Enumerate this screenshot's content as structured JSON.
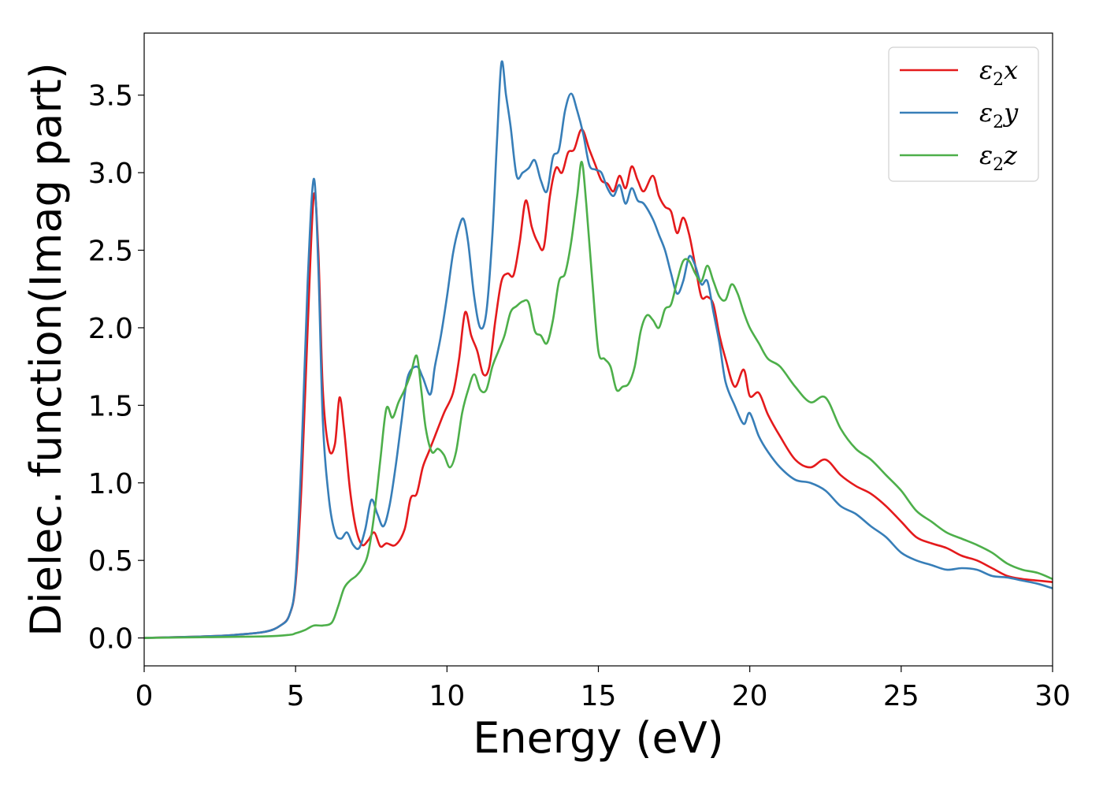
{
  "chart_data": {
    "type": "line",
    "title": "",
    "xlabel": "Energy (eV)",
    "ylabel": "Dielec. function(Imag part)",
    "xlim": [
      0,
      30
    ],
    "ylim": [
      -0.18,
      3.9
    ],
    "xticks": [
      0,
      5,
      10,
      15,
      20,
      25,
      30
    ],
    "yticks": [
      0.0,
      0.5,
      1.0,
      1.5,
      2.0,
      2.5,
      3.0,
      3.5
    ],
    "xtick_labels": [
      "0",
      "5",
      "10",
      "15",
      "20",
      "25",
      "30"
    ],
    "ytick_labels": [
      "0.0",
      "0.5",
      "1.0",
      "1.5",
      "2.0",
      "2.5",
      "3.0",
      "3.5"
    ],
    "grid": false,
    "legend_position": "top-right",
    "series": [
      {
        "name": "ε₂x",
        "legend_base": "ε",
        "legend_sub": "2",
        "legend_suffix": "x",
        "color": "#e41a1c",
        "x": [
          0,
          2,
          3,
          4,
          4.5,
          4.8,
          5.0,
          5.2,
          5.4,
          5.6,
          5.75,
          5.9,
          6.1,
          6.3,
          6.45,
          6.6,
          6.8,
          7.0,
          7.2,
          7.4,
          7.6,
          7.8,
          8.0,
          8.3,
          8.6,
          8.8,
          9.0,
          9.2,
          9.4,
          9.6,
          9.9,
          10.2,
          10.4,
          10.6,
          10.8,
          11.0,
          11.2,
          11.4,
          11.6,
          11.8,
          12.0,
          12.2,
          12.4,
          12.6,
          12.8,
          13.0,
          13.2,
          13.4,
          13.6,
          13.8,
          14.0,
          14.2,
          14.45,
          14.7,
          14.9,
          15.1,
          15.3,
          15.5,
          15.7,
          15.9,
          16.1,
          16.3,
          16.5,
          16.8,
          17.0,
          17.2,
          17.4,
          17.6,
          17.8,
          18.0,
          18.2,
          18.4,
          18.6,
          18.8,
          19.0,
          19.2,
          19.5,
          19.8,
          20.0,
          20.3,
          20.6,
          21.0,
          21.5,
          22.0,
          22.5,
          23.0,
          23.5,
          24.0,
          24.5,
          25.0,
          25.5,
          26.0,
          26.5,
          27.0,
          27.5,
          28.0,
          28.5,
          29.0,
          29.5,
          30.0
        ],
        "y": [
          0.0,
          0.01,
          0.02,
          0.04,
          0.08,
          0.15,
          0.35,
          1.0,
          2.0,
          2.85,
          2.5,
          1.6,
          1.22,
          1.25,
          1.55,
          1.35,
          0.95,
          0.7,
          0.6,
          0.63,
          0.68,
          0.59,
          0.61,
          0.6,
          0.7,
          0.9,
          0.93,
          1.1,
          1.2,
          1.3,
          1.45,
          1.58,
          1.8,
          2.1,
          1.95,
          1.85,
          1.7,
          1.75,
          2.05,
          2.3,
          2.35,
          2.34,
          2.55,
          2.82,
          2.65,
          2.55,
          2.52,
          2.85,
          3.03,
          3.0,
          3.13,
          3.15,
          3.28,
          3.15,
          3.05,
          2.95,
          2.93,
          2.88,
          2.98,
          2.9,
          3.04,
          2.95,
          2.88,
          2.98,
          2.85,
          2.78,
          2.75,
          2.61,
          2.71,
          2.6,
          2.4,
          2.2,
          2.2,
          2.15,
          1.95,
          1.8,
          1.62,
          1.73,
          1.56,
          1.58,
          1.44,
          1.3,
          1.15,
          1.1,
          1.15,
          1.05,
          0.98,
          0.93,
          0.85,
          0.75,
          0.65,
          0.61,
          0.58,
          0.53,
          0.5,
          0.45,
          0.4,
          0.38,
          0.37,
          0.36
        ]
      },
      {
        "name": "ε₂y",
        "legend_base": "ε",
        "legend_sub": "2",
        "legend_suffix": "y",
        "color": "#377eb8",
        "x": [
          0,
          2,
          3,
          4,
          4.5,
          4.8,
          5.0,
          5.2,
          5.4,
          5.6,
          5.75,
          5.9,
          6.1,
          6.3,
          6.5,
          6.7,
          6.9,
          7.1,
          7.3,
          7.5,
          7.7,
          7.9,
          8.1,
          8.3,
          8.5,
          8.7,
          9.0,
          9.2,
          9.45,
          9.6,
          9.8,
          10.0,
          10.2,
          10.4,
          10.55,
          10.7,
          10.9,
          11.1,
          11.3,
          11.5,
          11.65,
          11.8,
          11.95,
          12.1,
          12.3,
          12.5,
          12.7,
          12.9,
          13.1,
          13.3,
          13.5,
          13.7,
          13.9,
          14.1,
          14.3,
          14.5,
          14.7,
          14.9,
          15.1,
          15.3,
          15.5,
          15.7,
          15.9,
          16.1,
          16.3,
          16.5,
          16.8,
          17.0,
          17.2,
          17.4,
          17.6,
          17.8,
          18.0,
          18.2,
          18.4,
          18.6,
          18.8,
          19.0,
          19.2,
          19.5,
          19.8,
          20.0,
          20.3,
          20.6,
          21.0,
          21.5,
          22.0,
          22.5,
          23.0,
          23.5,
          24.0,
          24.5,
          25.0,
          25.5,
          26.0,
          26.5,
          27.0,
          27.5,
          28.0,
          28.5,
          29.0,
          29.5,
          30.0
        ],
        "y": [
          0.0,
          0.01,
          0.02,
          0.04,
          0.08,
          0.15,
          0.38,
          1.2,
          2.3,
          2.96,
          2.4,
          1.4,
          0.9,
          0.68,
          0.64,
          0.68,
          0.6,
          0.58,
          0.7,
          0.89,
          0.8,
          0.72,
          0.85,
          1.1,
          1.4,
          1.68,
          1.75,
          1.68,
          1.57,
          1.75,
          1.95,
          2.2,
          2.48,
          2.65,
          2.7,
          2.55,
          2.2,
          2.0,
          2.1,
          2.6,
          3.2,
          3.71,
          3.5,
          3.3,
          2.98,
          3.0,
          3.03,
          3.08,
          2.95,
          2.88,
          3.1,
          3.15,
          3.4,
          3.51,
          3.4,
          3.25,
          3.05,
          3.02,
          3.0,
          2.9,
          2.85,
          2.92,
          2.8,
          2.9,
          2.82,
          2.8,
          2.7,
          2.6,
          2.5,
          2.35,
          2.22,
          2.3,
          2.46,
          2.4,
          2.28,
          2.3,
          2.1,
          1.9,
          1.65,
          1.5,
          1.38,
          1.45,
          1.3,
          1.2,
          1.1,
          1.02,
          1.0,
          0.95,
          0.85,
          0.8,
          0.72,
          0.65,
          0.55,
          0.5,
          0.47,
          0.44,
          0.45,
          0.44,
          0.4,
          0.39,
          0.37,
          0.35,
          0.32
        ]
      },
      {
        "name": "ε₂z",
        "legend_base": "ε",
        "legend_sub": "2",
        "legend_suffix": "z",
        "color": "#4daf4a",
        "x": [
          0,
          2,
          4,
          4.8,
          5.0,
          5.3,
          5.6,
          5.9,
          6.2,
          6.4,
          6.6,
          6.8,
          7.0,
          7.2,
          7.4,
          7.6,
          7.8,
          8.0,
          8.2,
          8.4,
          8.6,
          8.8,
          9.0,
          9.15,
          9.3,
          9.5,
          9.7,
          9.9,
          10.1,
          10.3,
          10.5,
          10.7,
          10.9,
          11.1,
          11.3,
          11.5,
          11.7,
          11.9,
          12.1,
          12.3,
          12.5,
          12.7,
          12.9,
          13.1,
          13.3,
          13.5,
          13.7,
          13.9,
          14.1,
          14.3,
          14.45,
          14.6,
          14.8,
          15.0,
          15.2,
          15.4,
          15.6,
          15.8,
          16.0,
          16.2,
          16.4,
          16.6,
          16.8,
          17.0,
          17.2,
          17.4,
          17.6,
          17.8,
          18.0,
          18.2,
          18.4,
          18.6,
          18.8,
          19.0,
          19.2,
          19.4,
          19.6,
          19.8,
          20.0,
          20.3,
          20.6,
          21.0,
          21.5,
          22.0,
          22.5,
          23.0,
          23.5,
          24.0,
          24.5,
          25.0,
          25.5,
          26.0,
          26.5,
          27.0,
          27.5,
          28.0,
          28.5,
          29.0,
          29.5,
          30.0
        ],
        "y": [
          0.0,
          0.005,
          0.01,
          0.02,
          0.03,
          0.05,
          0.08,
          0.08,
          0.1,
          0.2,
          0.32,
          0.37,
          0.4,
          0.45,
          0.55,
          0.8,
          1.15,
          1.48,
          1.42,
          1.52,
          1.6,
          1.7,
          1.82,
          1.6,
          1.35,
          1.2,
          1.22,
          1.18,
          1.1,
          1.2,
          1.45,
          1.6,
          1.7,
          1.6,
          1.6,
          1.75,
          1.85,
          1.95,
          2.1,
          2.14,
          2.17,
          2.16,
          1.98,
          1.95,
          1.9,
          2.05,
          2.3,
          2.35,
          2.55,
          2.85,
          3.07,
          2.8,
          2.3,
          1.85,
          1.8,
          1.75,
          1.6,
          1.62,
          1.64,
          1.75,
          1.98,
          2.08,
          2.05,
          2.0,
          2.12,
          2.15,
          2.3,
          2.43,
          2.43,
          2.35,
          2.3,
          2.4,
          2.3,
          2.2,
          2.18,
          2.28,
          2.22,
          2.1,
          2.0,
          1.9,
          1.8,
          1.75,
          1.62,
          1.52,
          1.55,
          1.35,
          1.22,
          1.15,
          1.05,
          0.95,
          0.82,
          0.75,
          0.68,
          0.64,
          0.6,
          0.55,
          0.48,
          0.44,
          0.42,
          0.38
        ]
      }
    ]
  }
}
